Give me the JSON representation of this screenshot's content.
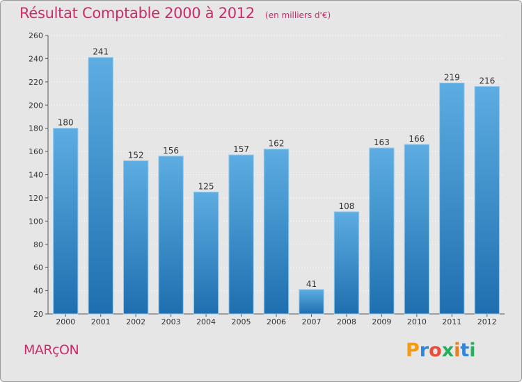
{
  "header": {
    "title": "Résultat Comptable 2000 à 2012",
    "unit_note": "(en milliers d'€)"
  },
  "footer": {
    "city": "MARçON",
    "brand": "Proxiti",
    "brand_letters": [
      "P",
      "r",
      "o",
      "x",
      "i",
      "t",
      "i"
    ],
    "brand_colors": [
      "#f39c12",
      "#2e86de",
      "#e74c3c",
      "#27ae60",
      "#e67e22",
      "#2e86de",
      "#27ae60"
    ]
  },
  "colors": {
    "accent": "#cc2a6b",
    "bar_top": "#5dade2",
    "bar_bottom": "#1f6fb0",
    "plot_bg": "#e6e6e6"
  },
  "chart_data": {
    "type": "bar",
    "title": "Résultat Comptable 2000 à 2012",
    "subtitle": "(en milliers d'€)",
    "xlabel": "",
    "ylabel": "",
    "categories": [
      "2000",
      "2001",
      "2002",
      "2003",
      "2004",
      "2005",
      "2006",
      "2007",
      "2008",
      "2009",
      "2010",
      "2011",
      "2012"
    ],
    "values": [
      180,
      241,
      152,
      156,
      125,
      157,
      162,
      41,
      108,
      163,
      166,
      219,
      216
    ],
    "ylim": [
      20,
      260
    ],
    "yticks": [
      20,
      40,
      60,
      80,
      100,
      120,
      140,
      160,
      180,
      200,
      220,
      240,
      260
    ],
    "grid": true,
    "legend": "none"
  }
}
